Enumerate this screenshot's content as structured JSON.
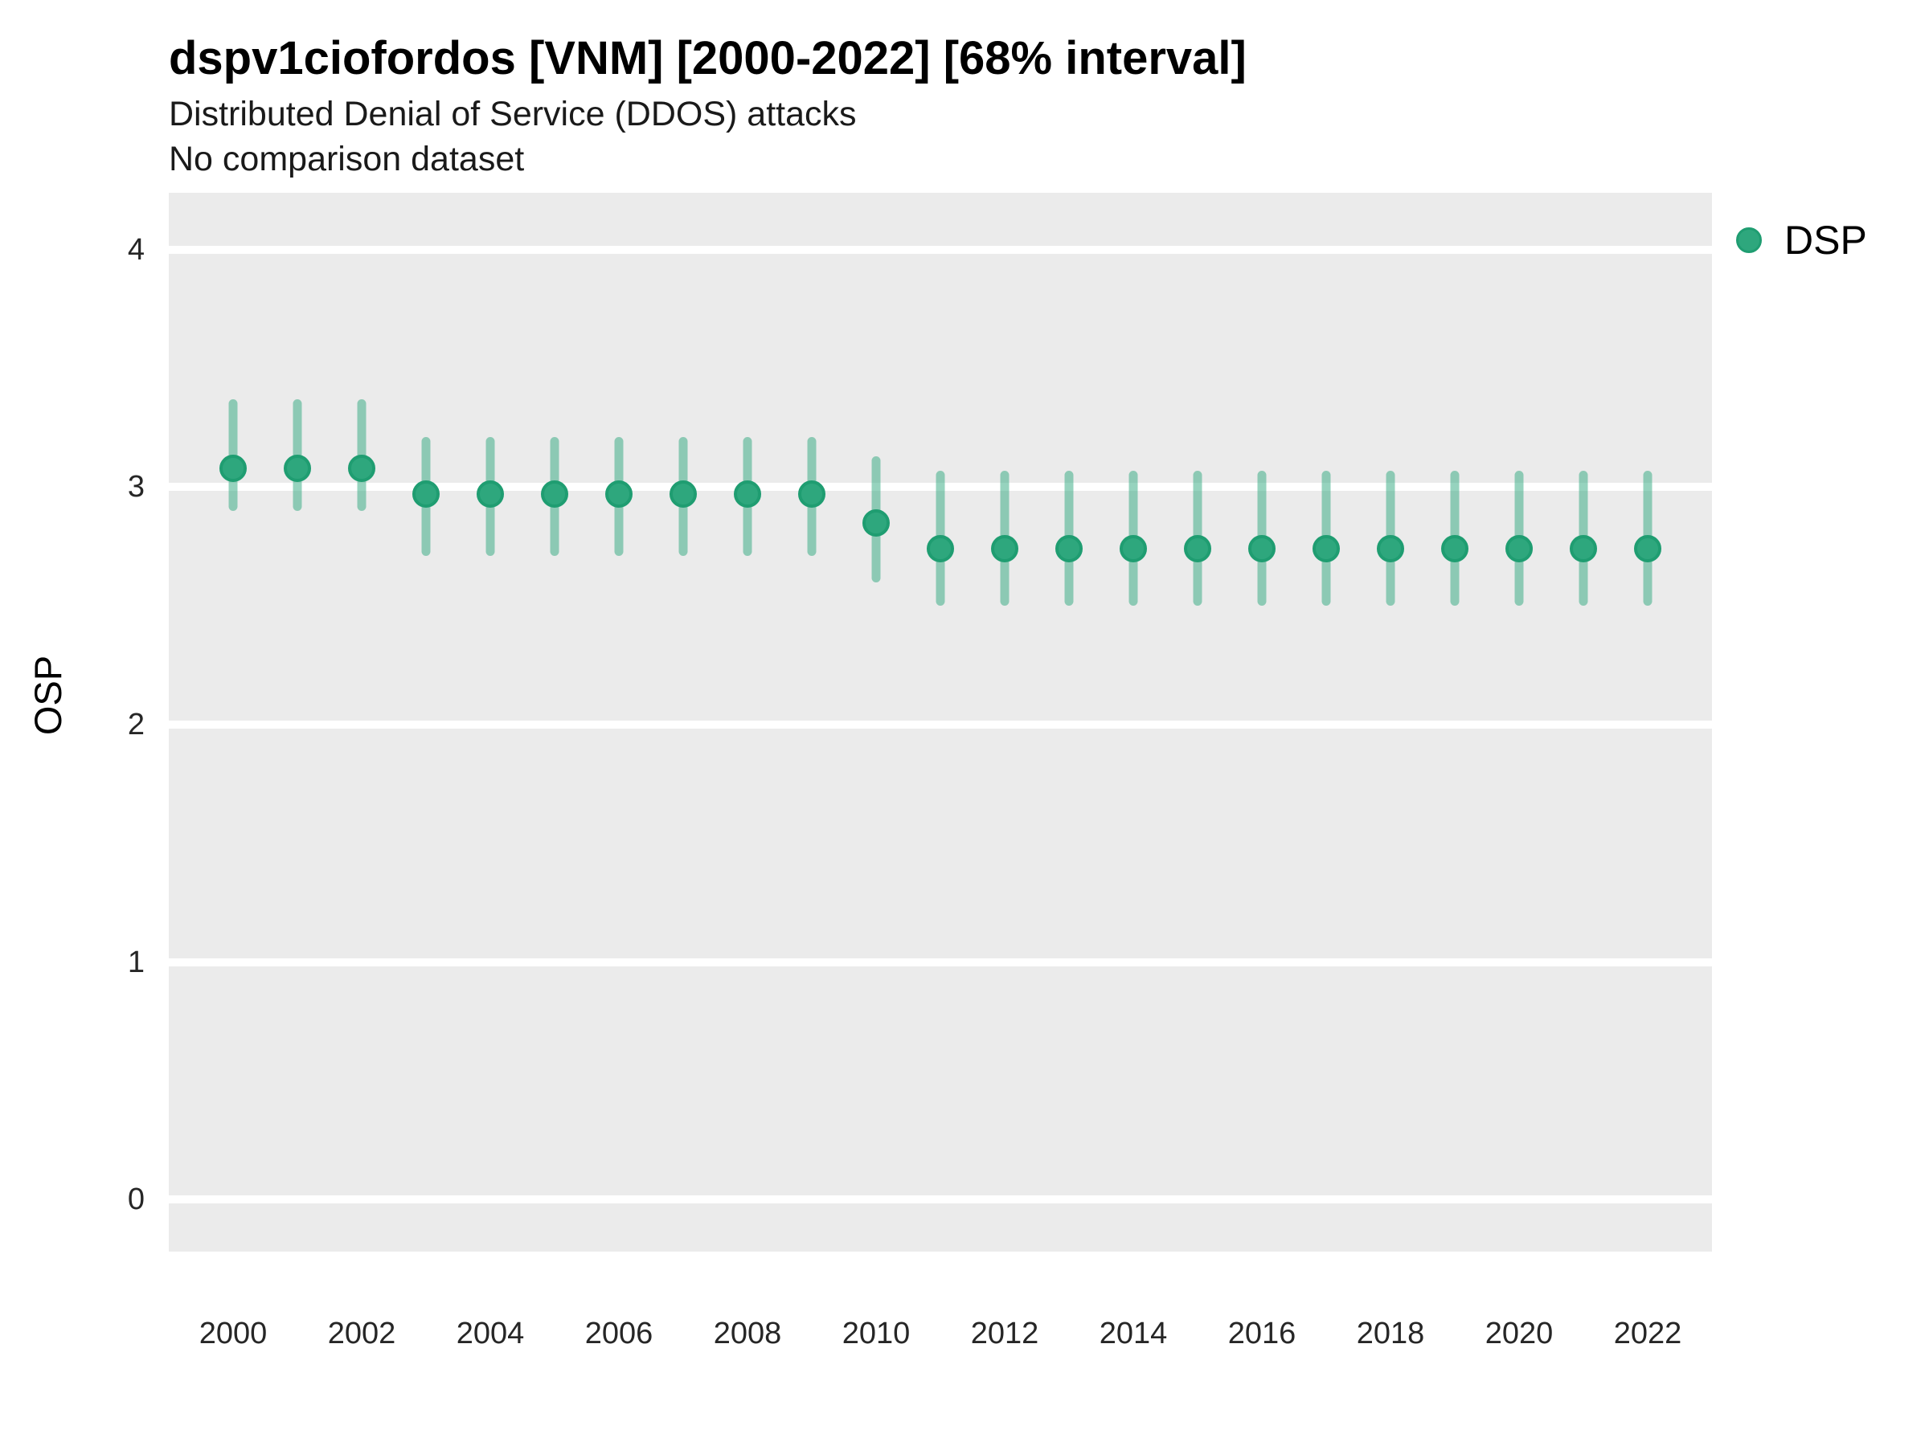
{
  "header": {
    "title": "dspv1ciofordos [VNM] [2000-2022] [68% interval]",
    "subtitle": "Distributed Denial of Service (DDOS) attacks",
    "comparison_note": "No comparison dataset"
  },
  "axes": {
    "y_title": "OSP",
    "x_title": ""
  },
  "legend": {
    "position": "right-top",
    "items": [
      {
        "label": "DSP",
        "color": "#2EA77D",
        "stroke": "#1F9D71"
      }
    ]
  },
  "colors": {
    "figure_bg": "#FFFFFF",
    "panel_bg": "#EBEBEB",
    "grid": "#FFFFFF",
    "point_fill": "#2EA77D",
    "point_stroke": "#1F9D71",
    "interval_bar": "rgba(46,167,125,0.5)",
    "title_text": "#000000",
    "tick_text": "#262626"
  },
  "chart_data": {
    "type": "scatter",
    "title": "dspv1ciofordos [VNM] [2000-2022] [68% interval]",
    "subtitle": "Distributed Denial of Service (DDOS) attacks",
    "note": "No comparison dataset",
    "xlabel": "",
    "ylabel": "OSP",
    "interval": "68%",
    "grid": "major-y-only",
    "legend_position": "right-top",
    "xlim": [
      1999,
      2023
    ],
    "ylim": [
      -0.22,
      4.24
    ],
    "x_ticks": [
      2000,
      2002,
      2004,
      2006,
      2008,
      2010,
      2012,
      2014,
      2016,
      2018,
      2020,
      2022
    ],
    "y_ticks": [
      0,
      1,
      2,
      3,
      4
    ],
    "series": [
      {
        "name": "DSP",
        "x": [
          2000,
          2001,
          2002,
          2003,
          2004,
          2005,
          2006,
          2007,
          2008,
          2009,
          2010,
          2011,
          2012,
          2013,
          2014,
          2015,
          2016,
          2017,
          2018,
          2019,
          2020,
          2021,
          2022
        ],
        "y": [
          3.08,
          3.08,
          3.08,
          2.97,
          2.97,
          2.97,
          2.97,
          2.97,
          2.97,
          2.97,
          2.85,
          2.74,
          2.74,
          2.74,
          2.74,
          2.74,
          2.74,
          2.74,
          2.74,
          2.74,
          2.74,
          2.74,
          2.74
        ],
        "lo": [
          2.9,
          2.9,
          2.9,
          2.71,
          2.71,
          2.71,
          2.71,
          2.71,
          2.71,
          2.71,
          2.6,
          2.5,
          2.5,
          2.5,
          2.5,
          2.5,
          2.5,
          2.5,
          2.5,
          2.5,
          2.5,
          2.5,
          2.5
        ],
        "hi": [
          3.37,
          3.37,
          3.37,
          3.21,
          3.21,
          3.21,
          3.21,
          3.21,
          3.21,
          3.21,
          3.13,
          3.07,
          3.07,
          3.07,
          3.07,
          3.07,
          3.07,
          3.07,
          3.07,
          3.07,
          3.07,
          3.07,
          3.07
        ]
      }
    ]
  }
}
